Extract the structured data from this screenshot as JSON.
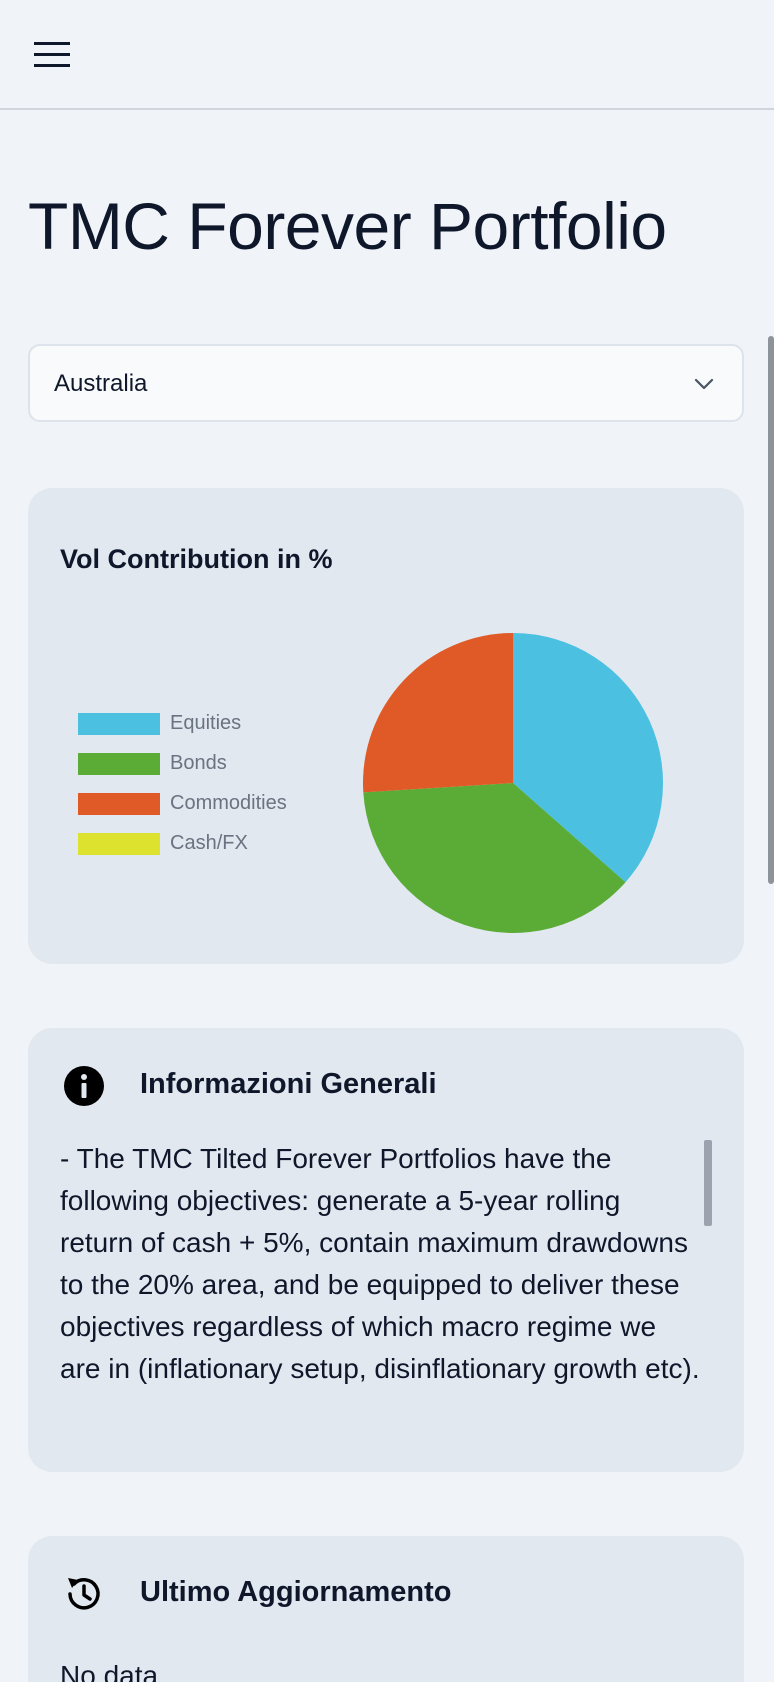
{
  "header": {
    "menu_icon": "hamburger-menu-icon"
  },
  "page": {
    "title": "TMC Forever Portfolio"
  },
  "country_select": {
    "value": "Australia",
    "icon": "chevron-down-icon"
  },
  "chart_data": {
    "type": "pie",
    "title": "Vol Contribution in %",
    "categories": [
      "Equities",
      "Bonds",
      "Commodities",
      "Cash/FX"
    ],
    "values": [
      36.5,
      37.5,
      26.0,
      0
    ],
    "colors": [
      "#4bc0e1",
      "#5aac36",
      "#df5a26",
      "#dce22e"
    ],
    "legend_position": "left"
  },
  "info_card": {
    "icon": "info-icon",
    "title": "Informazioni Generali",
    "text": "- The TMC Tilted Forever Portfolios have the following objectives: generate a 5-year rolling return of cash + 5%, contain maximum drawdowns to the 20% area, and be equipped to deliver these objectives regardless of which macro regime we are in (inflationary setup, disinflationary growth etc)."
  },
  "update_card": {
    "icon": "history-clock-icon",
    "title": "Ultimo Aggiornamento",
    "text": "No data"
  }
}
